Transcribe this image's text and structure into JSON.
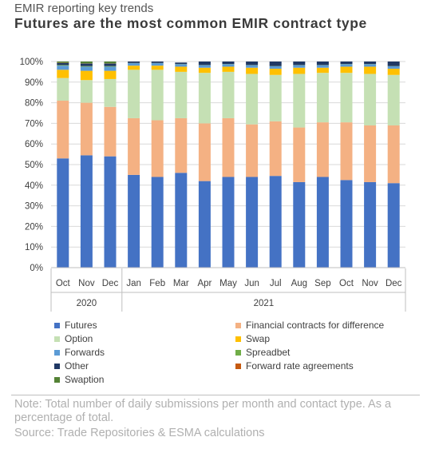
{
  "header": {
    "kicker": "EMIR reporting key trends",
    "title": "Futures are the most common EMIR contract type"
  },
  "footer": {
    "note": "Note: Total number of daily submissions per month and contact type. As a percentage of total.",
    "source": "Source: Trade Repositories & ESMA calculations"
  },
  "chart_data": {
    "type": "bar",
    "stacked": true,
    "categories": [
      "Oct",
      "Nov",
      "Dec",
      "Jan",
      "Feb",
      "Mar",
      "Apr",
      "May",
      "Jun",
      "Jul",
      "Aug",
      "Sep",
      "Oct",
      "Nov",
      "Dec"
    ],
    "year_groups": [
      {
        "label": "2020",
        "start": 0,
        "end": 2
      },
      {
        "label": "2021",
        "start": 3,
        "end": 14
      }
    ],
    "y_ticks": [
      "0%",
      "10%",
      "20%",
      "30%",
      "40%",
      "50%",
      "60%",
      "70%",
      "80%",
      "90%",
      "100%"
    ],
    "ylim": [
      0,
      100
    ],
    "grid": true,
    "legend_position": "bottom",
    "series": [
      {
        "name": "Futures",
        "color": "#4472c4",
        "values": [
          53,
          54.5,
          54,
          45,
          44,
          46,
          42,
          44,
          44,
          44.5,
          41.5,
          44,
          42.5,
          41.5,
          41
        ]
      },
      {
        "name": "Financial contracts for difference",
        "color": "#f4b183",
        "values": [
          28,
          25.5,
          24,
          27.5,
          27.5,
          26.5,
          28,
          28.5,
          25.5,
          26.5,
          26.5,
          26.5,
          28,
          27.5,
          28
        ]
      },
      {
        "name": "Option",
        "color": "#c5e0b4",
        "values": [
          11,
          11,
          13.5,
          23.5,
          24.5,
          22.5,
          24.5,
          22.5,
          24.5,
          22.5,
          26,
          24,
          24,
          25,
          24.5
        ]
      },
      {
        "name": "Swap",
        "color": "#ffc000",
        "values": [
          4,
          4.5,
          4,
          2,
          2,
          2.5,
          2.5,
          2.5,
          3,
          3,
          3,
          2.5,
          3,
          3.5,
          3
        ]
      },
      {
        "name": "Forwards",
        "color": "#5b9bd5",
        "values": [
          2,
          2,
          2,
          1.2,
          1.2,
          1.2,
          1.2,
          1.2,
          1.2,
          1.2,
          1.2,
          1.2,
          1.2,
          1.2,
          1.2
        ]
      },
      {
        "name": "Spreadbet",
        "color": "#70ad47",
        "values": [
          0.3,
          0.3,
          0.3,
          0.1,
          0.1,
          0.1,
          0.1,
          0.1,
          0.1,
          0.1,
          0.1,
          0.1,
          0.1,
          0.1,
          0.1
        ]
      },
      {
        "name": "Other",
        "color": "#203864",
        "values": [
          1,
          1.2,
          1.2,
          0.7,
          0.7,
          0.7,
          1.7,
          1.2,
          1.7,
          2.2,
          1.7,
          1.7,
          1.2,
          1.2,
          2.2
        ]
      },
      {
        "name": "Forward rate agreements",
        "color": "#c55a11",
        "values": [
          0.1,
          0.1,
          0.1,
          0,
          0,
          0,
          0,
          0,
          0,
          0,
          0,
          0,
          0,
          0,
          0
        ]
      },
      {
        "name": "Swaption",
        "color": "#548235",
        "values": [
          0.6,
          0.9,
          0.9,
          0,
          0,
          0,
          0,
          0,
          0,
          0,
          0,
          0,
          0,
          0,
          0
        ]
      }
    ]
  }
}
